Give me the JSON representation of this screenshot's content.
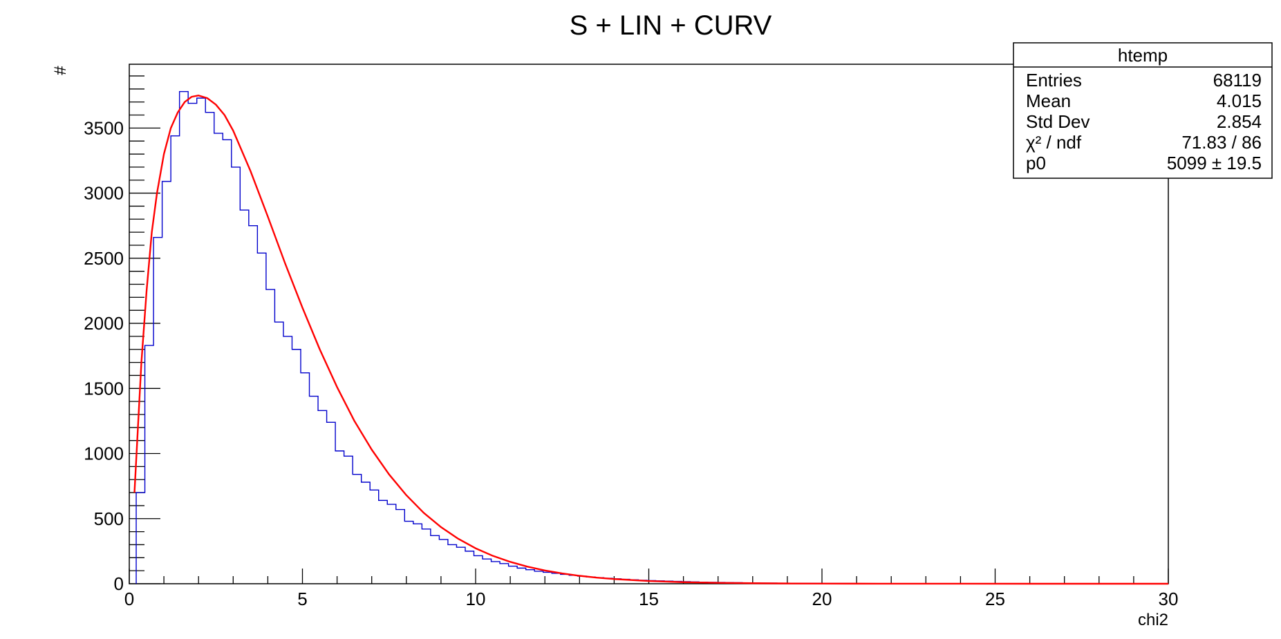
{
  "chart_data": {
    "type": "histogram",
    "title": "S + LIN + CURV",
    "xlabel": "chi2",
    "ylabel": "#",
    "xlim": [
      0,
      30
    ],
    "ylim": [
      0,
      3990
    ],
    "x_ticks": [
      0,
      5,
      10,
      15,
      20,
      25,
      30
    ],
    "y_ticks": [
      0,
      500,
      1000,
      1500,
      2000,
      2500,
      3000,
      3500
    ],
    "bin_edges_start": 0.2,
    "bin_width": 0.25,
    "hist_values": [
      700,
      1830,
      2660,
      3090,
      3440,
      3780,
      3690,
      3730,
      3620,
      3460,
      3410,
      3200,
      2870,
      2750,
      2540,
      2260,
      2010,
      1900,
      1800,
      1620,
      1440,
      1330,
      1240,
      1020,
      980,
      840,
      780,
      720,
      640,
      610,
      570,
      480,
      460,
      420,
      370,
      340,
      300,
      280,
      250,
      215,
      190,
      170,
      155,
      135,
      120,
      108,
      96,
      88,
      80,
      72,
      65,
      58,
      52,
      47,
      42,
      38,
      34,
      30,
      27,
      24,
      22,
      20,
      18,
      16,
      14,
      12,
      11,
      10,
      9,
      8,
      7,
      6,
      5,
      5,
      4,
      4,
      3,
      3,
      3,
      2,
      2,
      2,
      2,
      1,
      1,
      1,
      1,
      1
    ],
    "hist_color": "#0000cc",
    "fit_x": [
      0.15,
      0.25,
      0.35,
      0.5,
      0.65,
      0.8,
      1.0,
      1.2,
      1.4,
      1.6,
      1.8,
      2.0,
      2.25,
      2.5,
      2.75,
      3.0,
      3.5,
      4.0,
      4.5,
      5.0,
      5.5,
      6.0,
      6.5,
      7.0,
      7.5,
      8.0,
      8.5,
      9.0,
      9.5,
      10.0,
      10.5,
      11.0,
      11.5,
      12.0,
      12.5,
      13.0,
      13.5,
      14.0,
      15.0,
      16.0,
      17.0,
      18.0,
      19.0,
      20.0,
      21.0,
      22.0,
      24.0,
      26.0,
      28.0,
      30.0
    ],
    "fit_y": [
      700,
      1200,
      1700,
      2250,
      2700,
      3000,
      3300,
      3500,
      3620,
      3700,
      3740,
      3750,
      3730,
      3680,
      3600,
      3480,
      3170,
      2820,
      2460,
      2120,
      1800,
      1510,
      1250,
      1030,
      840,
      680,
      545,
      435,
      345,
      272,
      214,
      168,
      131,
      102,
      79,
      61,
      47,
      36,
      21,
      12,
      7,
      4,
      2,
      1,
      0.6,
      0.3,
      0.1,
      0,
      0,
      0
    ],
    "fit_color": "#ff0000",
    "stats_box": {
      "title": "htemp",
      "rows": [
        {
          "label": "Entries",
          "value": "68119"
        },
        {
          "label": "Mean",
          "value": "4.015"
        },
        {
          "label": "Std Dev",
          "value": "2.854"
        },
        {
          "label": "χ² / ndf",
          "value": "71.83 / 86"
        },
        {
          "label": "p0",
          "value": "5099 ± 19.5"
        }
      ]
    }
  }
}
